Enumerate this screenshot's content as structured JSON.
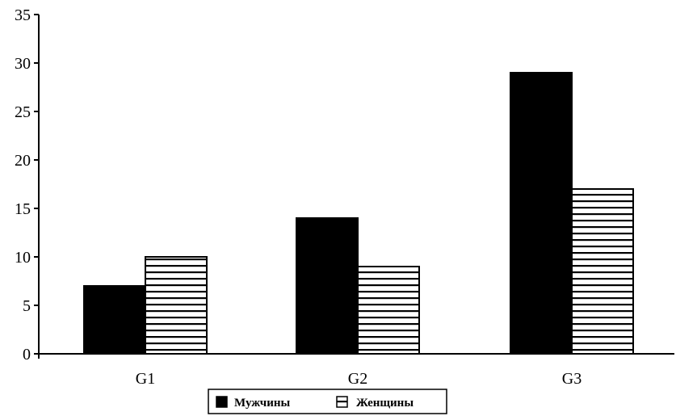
{
  "chart_data": {
    "type": "bar",
    "categories": [
      "G1",
      "G2",
      "G3"
    ],
    "series": [
      {
        "name": "Мужчины",
        "values": [
          7,
          14,
          29
        ],
        "color": "#000000",
        "pattern": "solid"
      },
      {
        "name": "Женщины",
        "values": [
          10,
          9,
          17
        ],
        "color": "#ffffff",
        "pattern": "horizontal-stripes"
      }
    ],
    "title": "",
    "xlabel": "",
    "ylabel": "",
    "ylim": [
      0,
      35
    ],
    "yticks": [
      "0",
      "5",
      "10",
      "15",
      "20",
      "25",
      "30",
      "35"
    ],
    "grid": false,
    "legend_position": "bottom-center"
  }
}
